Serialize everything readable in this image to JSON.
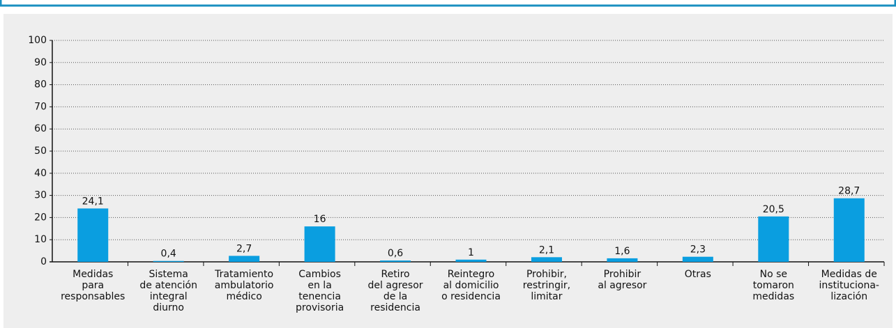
{
  "chart_data": {
    "type": "bar",
    "categories": [
      [
        "Medidas",
        "para",
        "responsables"
      ],
      [
        "Sistema",
        "de atención",
        "integral",
        "diurno"
      ],
      [
        "Tratamiento",
        "ambulatorio",
        "médico"
      ],
      [
        "Cambios",
        "en la",
        "tenencia",
        "provisoria"
      ],
      [
        "Retiro",
        "del agresor",
        "de la",
        "residencia"
      ],
      [
        "Reintegro",
        "al domicilio",
        "o residencia"
      ],
      [
        "Prohibir,",
        "restringir,",
        "limitar"
      ],
      [
        "Prohibir",
        "al agresor"
      ],
      [
        "Otras"
      ],
      [
        "No se",
        "tomaron",
        "medidas"
      ],
      [
        "Medidas de",
        "instituciona-",
        "lización"
      ]
    ],
    "values": [
      24.1,
      0.4,
      2.7,
      16,
      0.6,
      1,
      2.1,
      1.6,
      2.3,
      20.5,
      28.7
    ],
    "value_labels": [
      "24,1",
      "0,4",
      "2,7",
      "16",
      "0,6",
      "1",
      "2,1",
      "1,6",
      "2,3",
      "20,5",
      "28,7"
    ],
    "color": "#0a9ee0",
    "ylim": [
      0,
      100
    ],
    "yticks": [
      0,
      10,
      20,
      30,
      40,
      50,
      60,
      70,
      80,
      90,
      100
    ],
    "grid": true
  }
}
